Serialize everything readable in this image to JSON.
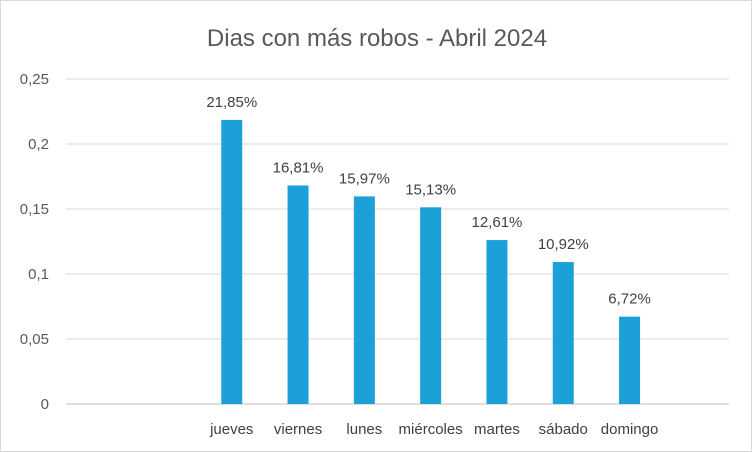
{
  "chart_data": {
    "type": "bar",
    "title": "Dias con más robos - Abril 2024",
    "categories": [
      "",
      "",
      "jueves",
      "viernes",
      "lunes",
      "miércoles",
      "martes",
      "sábado",
      "domingo",
      ""
    ],
    "values": [
      null,
      null,
      0.2185,
      0.1681,
      0.1597,
      0.1513,
      0.1261,
      0.1092,
      0.0672,
      null
    ],
    "data_labels": [
      "",
      "",
      "21,85%",
      "16,81%",
      "15,97%",
      "15,13%",
      "12,61%",
      "10,92%",
      "6,72%",
      ""
    ],
    "ylim": [
      0,
      0.25
    ],
    "yticks": [
      0,
      0.05,
      0.1,
      0.15,
      0.2,
      0.25
    ],
    "ytick_labels": [
      "0",
      "0,05",
      "0,1",
      "0,15",
      "0,2",
      "0,25"
    ],
    "grid": true,
    "legend": "none",
    "bar_color": "#1ca0d8"
  }
}
